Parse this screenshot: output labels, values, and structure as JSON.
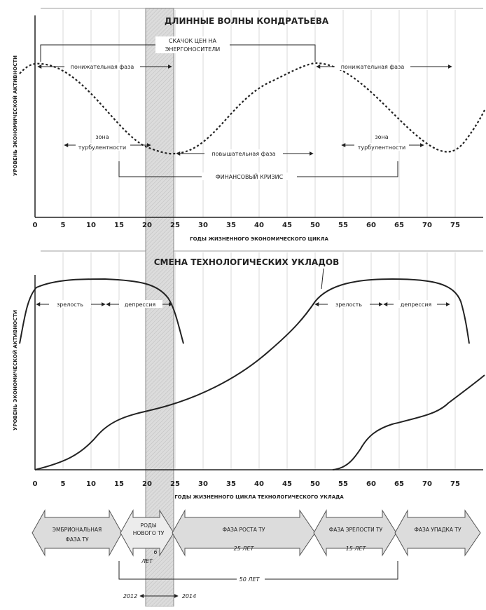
{
  "top_chart": {
    "title": "ДЛИННЫЕ ВОЛНЫ КОНДРАТЬЕВА",
    "ylabel": "УРОВЕНЬ ЭКОНОМИЧЕСКОЙ АКТИВНОСТИ",
    "xlabel": "ГОДЫ ЖИЗНЕННОГО ЭКОНОМИЧЕСКОГО ЦИКЛА",
    "ticks": [
      "0",
      "5",
      "10",
      "15",
      "20",
      "25",
      "30",
      "35",
      "40",
      "45",
      "50",
      "55",
      "60",
      "65",
      "70",
      "75"
    ],
    "price_drop_line1": "СКАЧОК ЦЕН НА",
    "price_drop_line2": "ЭНЕРГОНОСИТЕЛИ",
    "down_phase_1": "понижательная фаза",
    "down_phase_2": "понижательная фаза",
    "up_phase": "повышательная фаза",
    "turb_1_line1": "зона",
    "turb_1_line2": "турбулентности",
    "turb_2_line1": "зона",
    "turb_2_line2": "турбулентности",
    "crisis": "ФИНАНСОВЫЙ КРИЗИС"
  },
  "bottom_chart": {
    "title": "СМЕНА ТЕХНОЛОГИЧЕСКИХ УКЛАДОВ",
    "ylabel": "УРОВЕНЬ ЭКОНОМИЧЕСКОЙ АКТИВНОСТИ",
    "xlabel": "ГОДЫ ЖИЗНЕННОГО ЦИКЛА ТЕХНОЛОГИЧЕСКОГО УКЛАДА",
    "ticks": [
      "0",
      "5",
      "10",
      "15",
      "20",
      "25",
      "30",
      "35",
      "40",
      "45",
      "50",
      "55",
      "60",
      "65",
      "70",
      "75"
    ],
    "maturity_1": "зрелость",
    "depression_1": "депрессия",
    "maturity_2": "зрелость",
    "depression_2": "депрессия"
  },
  "phases": {
    "embryo_line1": "ЭМБРИОНАЛЬНАЯ",
    "embryo_line2": "ФАЗА ТУ",
    "birth_line1": "РОДЫ",
    "birth_line2": "НОВОГО ТУ",
    "birth_years_line1": "6",
    "birth_years_line2": "ЛЕТ",
    "growth": "ФАЗА РОСТА ТУ",
    "growth_years": "25 ЛЕТ",
    "maturity": "ФАЗА ЗРЕЛОСТИ ТУ",
    "maturity_years": "15 ЛЕТ",
    "decline": "ФАЗА УПАДКА ТУ",
    "total_years": "50 ЛЕТ",
    "year_start": "2012",
    "year_end": "2014"
  }
}
